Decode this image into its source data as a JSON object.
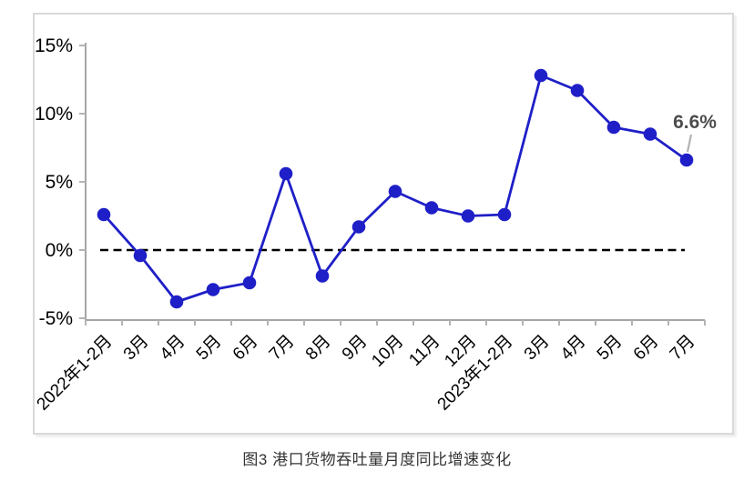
{
  "figure": {
    "caption": "图3 港口货物吞吐量月度同比增速变化"
  },
  "chart_data": {
    "type": "line",
    "title": "图3 港口货物吞吐量月度同比增速变化",
    "categories": [
      "2022年1-2月",
      "3月",
      "4月",
      "5月",
      "6月",
      "7月",
      "8月",
      "9月",
      "10月",
      "11月",
      "12月",
      "2023年1-2月",
      "3月",
      "4月",
      "5月",
      "6月",
      "7月"
    ],
    "series": [
      {
        "name": "港口货物吞吐量月度同比增速",
        "values": [
          2.6,
          -0.4,
          -3.8,
          -2.9,
          -2.4,
          5.6,
          -1.9,
          1.7,
          4.3,
          3.1,
          2.5,
          2.6,
          12.8,
          11.7,
          9.0,
          8.5,
          6.6
        ],
        "color": "#1f1fc8"
      }
    ],
    "xlabel": "",
    "ylabel": "",
    "y_axis": {
      "tick_labels": [
        "15%",
        "10%",
        "5%",
        "0%",
        "-5%"
      ],
      "tick_values": [
        15,
        10,
        5,
        0,
        -5
      ],
      "ylim": [
        -5.5,
        15.5
      ]
    },
    "baseline": {
      "value": 0,
      "style": "dashed",
      "color": "#000000"
    },
    "annotation": {
      "text": "6.6%",
      "point_index": 16,
      "color": "#4d4d4d",
      "leader_color": "#b3b3b3"
    },
    "legend": "none",
    "grid": false,
    "colors": {
      "axis": "#a6a6a6",
      "tick": "#b3b3b3",
      "tick_label": "#000000",
      "frame_border": "#d9d9d9"
    }
  }
}
